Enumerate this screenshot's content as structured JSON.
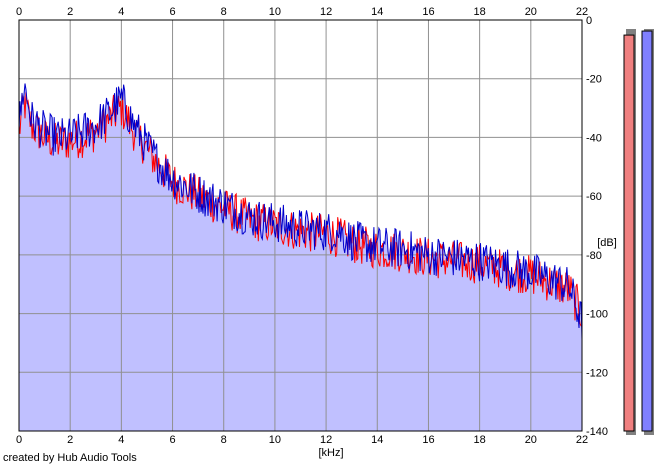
{
  "chart_data": {
    "type": "area",
    "xlabel": "[kHz]",
    "ylabel": "[dB]",
    "xlim": [
      0,
      22
    ],
    "ylim": [
      -140,
      0
    ],
    "x_ticks": [
      0,
      2,
      4,
      6,
      8,
      10,
      12,
      14,
      16,
      18,
      20,
      22
    ],
    "y_ticks": [
      0,
      -20,
      -40,
      -60,
      -80,
      -100,
      -120,
      -140
    ],
    "grid": true,
    "fill_color": "#c0c0ff",
    "series": [
      {
        "color": "#ff0000",
        "x": [
          0,
          0.2,
          0.5,
          1,
          1.5,
          2,
          2.5,
          3,
          3.5,
          4,
          4.5,
          5,
          5.5,
          6,
          7,
          8,
          9,
          10,
          11,
          12,
          12.5,
          13,
          14,
          15,
          16,
          17,
          18,
          19,
          20,
          21,
          21.5,
          22
        ],
        "values": [
          -38,
          -28,
          -36,
          -40,
          -42,
          -41,
          -40,
          -38,
          -34,
          -30,
          -38,
          -44,
          -50,
          -55,
          -60,
          -64,
          -68,
          -70,
          -72,
          -73,
          -74,
          -76,
          -78,
          -79,
          -81,
          -82,
          -83,
          -85,
          -87,
          -90,
          -92,
          -100
        ]
      },
      {
        "color": "#0000cc",
        "x": [
          0,
          0.2,
          0.5,
          1,
          1.5,
          2,
          2.5,
          3,
          3.5,
          4,
          4.5,
          5,
          5.5,
          6,
          7,
          8,
          9,
          10,
          11,
          12,
          12.5,
          13,
          14,
          15,
          16,
          17,
          18,
          19,
          20,
          21,
          21.5,
          22
        ],
        "values": [
          -36,
          -22,
          -34,
          -38,
          -40,
          -40,
          -38,
          -36,
          -32,
          -27,
          -36,
          -43,
          -49,
          -54,
          -59,
          -63,
          -67,
          -69,
          -71,
          -72,
          -72,
          -75,
          -77,
          -78,
          -80,
          -81,
          -82,
          -84,
          -86,
          -89,
          -91,
          -103
        ]
      }
    ],
    "level_meters": [
      {
        "color": "#f08080",
        "level": 0.98
      },
      {
        "color": "#8080ff",
        "level": 0.99
      }
    ]
  },
  "credit": "created by Hub Audio Tools"
}
